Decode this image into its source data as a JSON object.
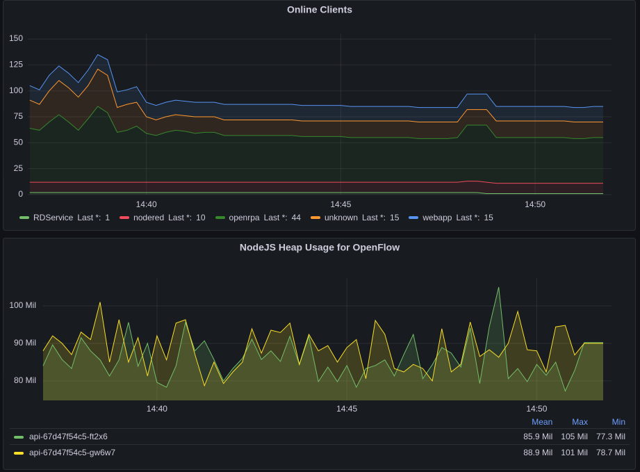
{
  "chart_data": [
    {
      "type": "line",
      "title": "Online Clients",
      "stacked": true,
      "grid": true,
      "legend_stat": "Last *:",
      "x": [
        "14:37:00",
        "14:37:15",
        "14:37:30",
        "14:37:45",
        "14:38:00",
        "14:38:15",
        "14:38:30",
        "14:38:45",
        "14:39:00",
        "14:39:15",
        "14:39:30",
        "14:39:45",
        "14:40:00",
        "14:40:15",
        "14:40:30",
        "14:40:45",
        "14:41:00",
        "14:41:15",
        "14:41:30",
        "14:41:45",
        "14:42:00",
        "14:42:15",
        "14:42:30",
        "14:42:45",
        "14:43:00",
        "14:43:15",
        "14:43:30",
        "14:43:45",
        "14:44:00",
        "14:44:15",
        "14:44:30",
        "14:44:45",
        "14:45:00",
        "14:45:15",
        "14:45:30",
        "14:45:45",
        "14:46:00",
        "14:46:15",
        "14:46:30",
        "14:46:45",
        "14:47:00",
        "14:47:15",
        "14:47:30",
        "14:47:45",
        "14:48:00",
        "14:48:15",
        "14:48:30",
        "14:48:45",
        "14:49:00",
        "14:49:15",
        "14:49:30",
        "14:49:45",
        "14:50:00",
        "14:50:15",
        "14:50:30",
        "14:50:45",
        "14:51:00",
        "14:51:15",
        "14:51:30",
        "14:51:45"
      ],
      "xlim": [
        "14:36:57",
        "14:51:45"
      ],
      "xticks": [
        "14:40",
        "14:45",
        "14:50"
      ],
      "ylim": [
        0,
        155
      ],
      "yticks": [
        0,
        25,
        50,
        75,
        100,
        125,
        150
      ],
      "series": [
        {
          "name": "RDService",
          "color": "#73bf69",
          "values": [
            2,
            2,
            2,
            2,
            2,
            2,
            2,
            2,
            2,
            2,
            2,
            2,
            2,
            2,
            2,
            2,
            2,
            2,
            2,
            2,
            2,
            2,
            2,
            2,
            2,
            2,
            2,
            2,
            2,
            2,
            2,
            2,
            2,
            2,
            2,
            2,
            2,
            2,
            2,
            2,
            2,
            2,
            2,
            2,
            2,
            2,
            2,
            1,
            1,
            1,
            1,
            1,
            1,
            1,
            1,
            1,
            1,
            1,
            1,
            1
          ]
        },
        {
          "name": "nodered",
          "color": "#f2495c",
          "values": [
            10,
            10,
            10,
            10,
            10,
            10,
            10,
            10,
            10,
            10,
            10,
            10,
            10,
            10,
            10,
            10,
            10,
            10,
            10,
            10,
            10,
            10,
            10,
            10,
            10,
            10,
            10,
            10,
            10,
            10,
            10,
            10,
            10,
            10,
            10,
            10,
            10,
            10,
            10,
            10,
            10,
            10,
            10,
            10,
            10,
            11,
            11,
            11,
            10,
            10,
            10,
            10,
            10,
            10,
            10,
            10,
            10,
            10,
            10,
            10
          ]
        },
        {
          "name": "openrpa",
          "color": "#37872d",
          "values": [
            52,
            50,
            58,
            65,
            58,
            50,
            61,
            73,
            67,
            48,
            50,
            54,
            47,
            45,
            48,
            50,
            49,
            47,
            48,
            48,
            45,
            45,
            45,
            45,
            45,
            45,
            45,
            45,
            44,
            44,
            44,
            44,
            44,
            43,
            43,
            43,
            43,
            43,
            43,
            43,
            42,
            42,
            42,
            42,
            43,
            54,
            54,
            55,
            44,
            44,
            44,
            44,
            44,
            44,
            44,
            44,
            43,
            43,
            44,
            44
          ]
        },
        {
          "name": "unknown",
          "color": "#ff9830",
          "values": [
            27,
            25,
            30,
            33,
            33,
            32,
            32,
            36,
            36,
            24,
            25,
            23,
            16,
            15,
            15,
            15,
            15,
            16,
            15,
            15,
            15,
            15,
            15,
            15,
            15,
            15,
            15,
            15,
            15,
            15,
            15,
            15,
            15,
            16,
            16,
            16,
            16,
            16,
            16,
            16,
            16,
            16,
            16,
            16,
            15,
            15,
            15,
            15,
            16,
            16,
            16,
            16,
            16,
            16,
            16,
            16,
            16,
            16,
            15,
            15
          ]
        },
        {
          "name": "webapp",
          "color": "#5794f2",
          "values": [
            14,
            14,
            15,
            14,
            14,
            14,
            15,
            14,
            15,
            15,
            14,
            15,
            14,
            14,
            14,
            14,
            14,
            14,
            14,
            14,
            15,
            15,
            15,
            15,
            15,
            15,
            15,
            15,
            15,
            15,
            15,
            15,
            15,
            14,
            14,
            14,
            14,
            14,
            14,
            14,
            14,
            14,
            14,
            14,
            14,
            15,
            15,
            15,
            14,
            14,
            14,
            14,
            14,
            14,
            14,
            14,
            14,
            14,
            15,
            15
          ]
        }
      ]
    },
    {
      "type": "line",
      "title": "NodeJS Heap Usage for OpenFlow",
      "stacked": false,
      "grid": true,
      "x": [
        "14:37:00",
        "14:37:15",
        "14:37:30",
        "14:37:45",
        "14:38:00",
        "14:38:15",
        "14:38:30",
        "14:38:45",
        "14:39:00",
        "14:39:15",
        "14:39:30",
        "14:39:45",
        "14:40:00",
        "14:40:15",
        "14:40:30",
        "14:40:45",
        "14:41:00",
        "14:41:15",
        "14:41:30",
        "14:41:45",
        "14:42:00",
        "14:42:15",
        "14:42:30",
        "14:42:45",
        "14:43:00",
        "14:43:15",
        "14:43:30",
        "14:43:45",
        "14:44:00",
        "14:44:15",
        "14:44:30",
        "14:44:45",
        "14:45:00",
        "14:45:15",
        "14:45:30",
        "14:45:45",
        "14:46:00",
        "14:46:15",
        "14:46:30",
        "14:46:45",
        "14:47:00",
        "14:47:15",
        "14:47:30",
        "14:47:45",
        "14:48:00",
        "14:48:15",
        "14:48:30",
        "14:48:45",
        "14:49:00",
        "14:49:15",
        "14:49:30",
        "14:49:45",
        "14:50:00",
        "14:50:15",
        "14:50:30",
        "14:50:45",
        "14:51:00",
        "14:51:15",
        "14:51:30",
        "14:51:45"
      ],
      "xlim": [
        "14:37:00",
        "14:51:45"
      ],
      "xticks": [
        "14:40",
        "14:45",
        "14:50"
      ],
      "ylim": [
        74800000,
        107400000
      ],
      "yticks": [
        {
          "value": 80000000,
          "label": "80 Mil"
        },
        {
          "value": 90000000,
          "label": "90 Mil"
        },
        {
          "value": 100000000,
          "label": "100 Mil"
        }
      ],
      "legend": {
        "columns": [
          "Mean",
          "Max",
          "Min"
        ]
      },
      "series": [
        {
          "name": "api-67d47f54c5-ft2x6",
          "color": "#73bf69",
          "stats": [
            "85.9 Mil",
            "105 Mil",
            "77.3 Mil"
          ],
          "values": [
            84000000,
            89600000,
            85700000,
            83300000,
            91500000,
            88000000,
            85600000,
            81300000,
            85600000,
            95600000,
            83900000,
            90000000,
            79600000,
            78300000,
            84000000,
            95600000,
            88000000,
            90700000,
            85700000,
            80000000,
            83300000,
            86000000,
            91100000,
            85700000,
            88000000,
            85200000,
            91900000,
            84300000,
            91900000,
            79800000,
            83700000,
            79800000,
            84100000,
            78300000,
            83300000,
            84100000,
            85600000,
            81300000,
            87000000,
            92400000,
            80600000,
            84300000,
            88900000,
            87400000,
            83700000,
            94100000,
            79300000,
            94400000,
            105000000,
            80600000,
            83300000,
            79800000,
            84400000,
            81500000,
            85000000,
            77300000,
            82800000,
            90200000,
            90200000,
            90200000
          ]
        },
        {
          "name": "api-67d47f54c5-gw6w7",
          "color": "#fade2a",
          "stats": [
            "88.9 Mil",
            "101 Mil",
            "78.7 Mil"
          ],
          "values": [
            88000000,
            92000000,
            90000000,
            87000000,
            93000000,
            91000000,
            101000000,
            85000000,
            96300000,
            85000000,
            91500000,
            81300000,
            92000000,
            85600000,
            95400000,
            96300000,
            87000000,
            78700000,
            85000000,
            79300000,
            82400000,
            85000000,
            93900000,
            87400000,
            93500000,
            92900000,
            95400000,
            84400000,
            92400000,
            88000000,
            89400000,
            85000000,
            88900000,
            91000000,
            80600000,
            96100000,
            92400000,
            83300000,
            82400000,
            84400000,
            83300000,
            80000000,
            93900000,
            82400000,
            84400000,
            95700000,
            86500000,
            88300000,
            86300000,
            90000000,
            98500000,
            88300000,
            88000000,
            82400000,
            94400000,
            94800000,
            86900000,
            90000000,
            90000000,
            90000000
          ]
        }
      ]
    }
  ]
}
